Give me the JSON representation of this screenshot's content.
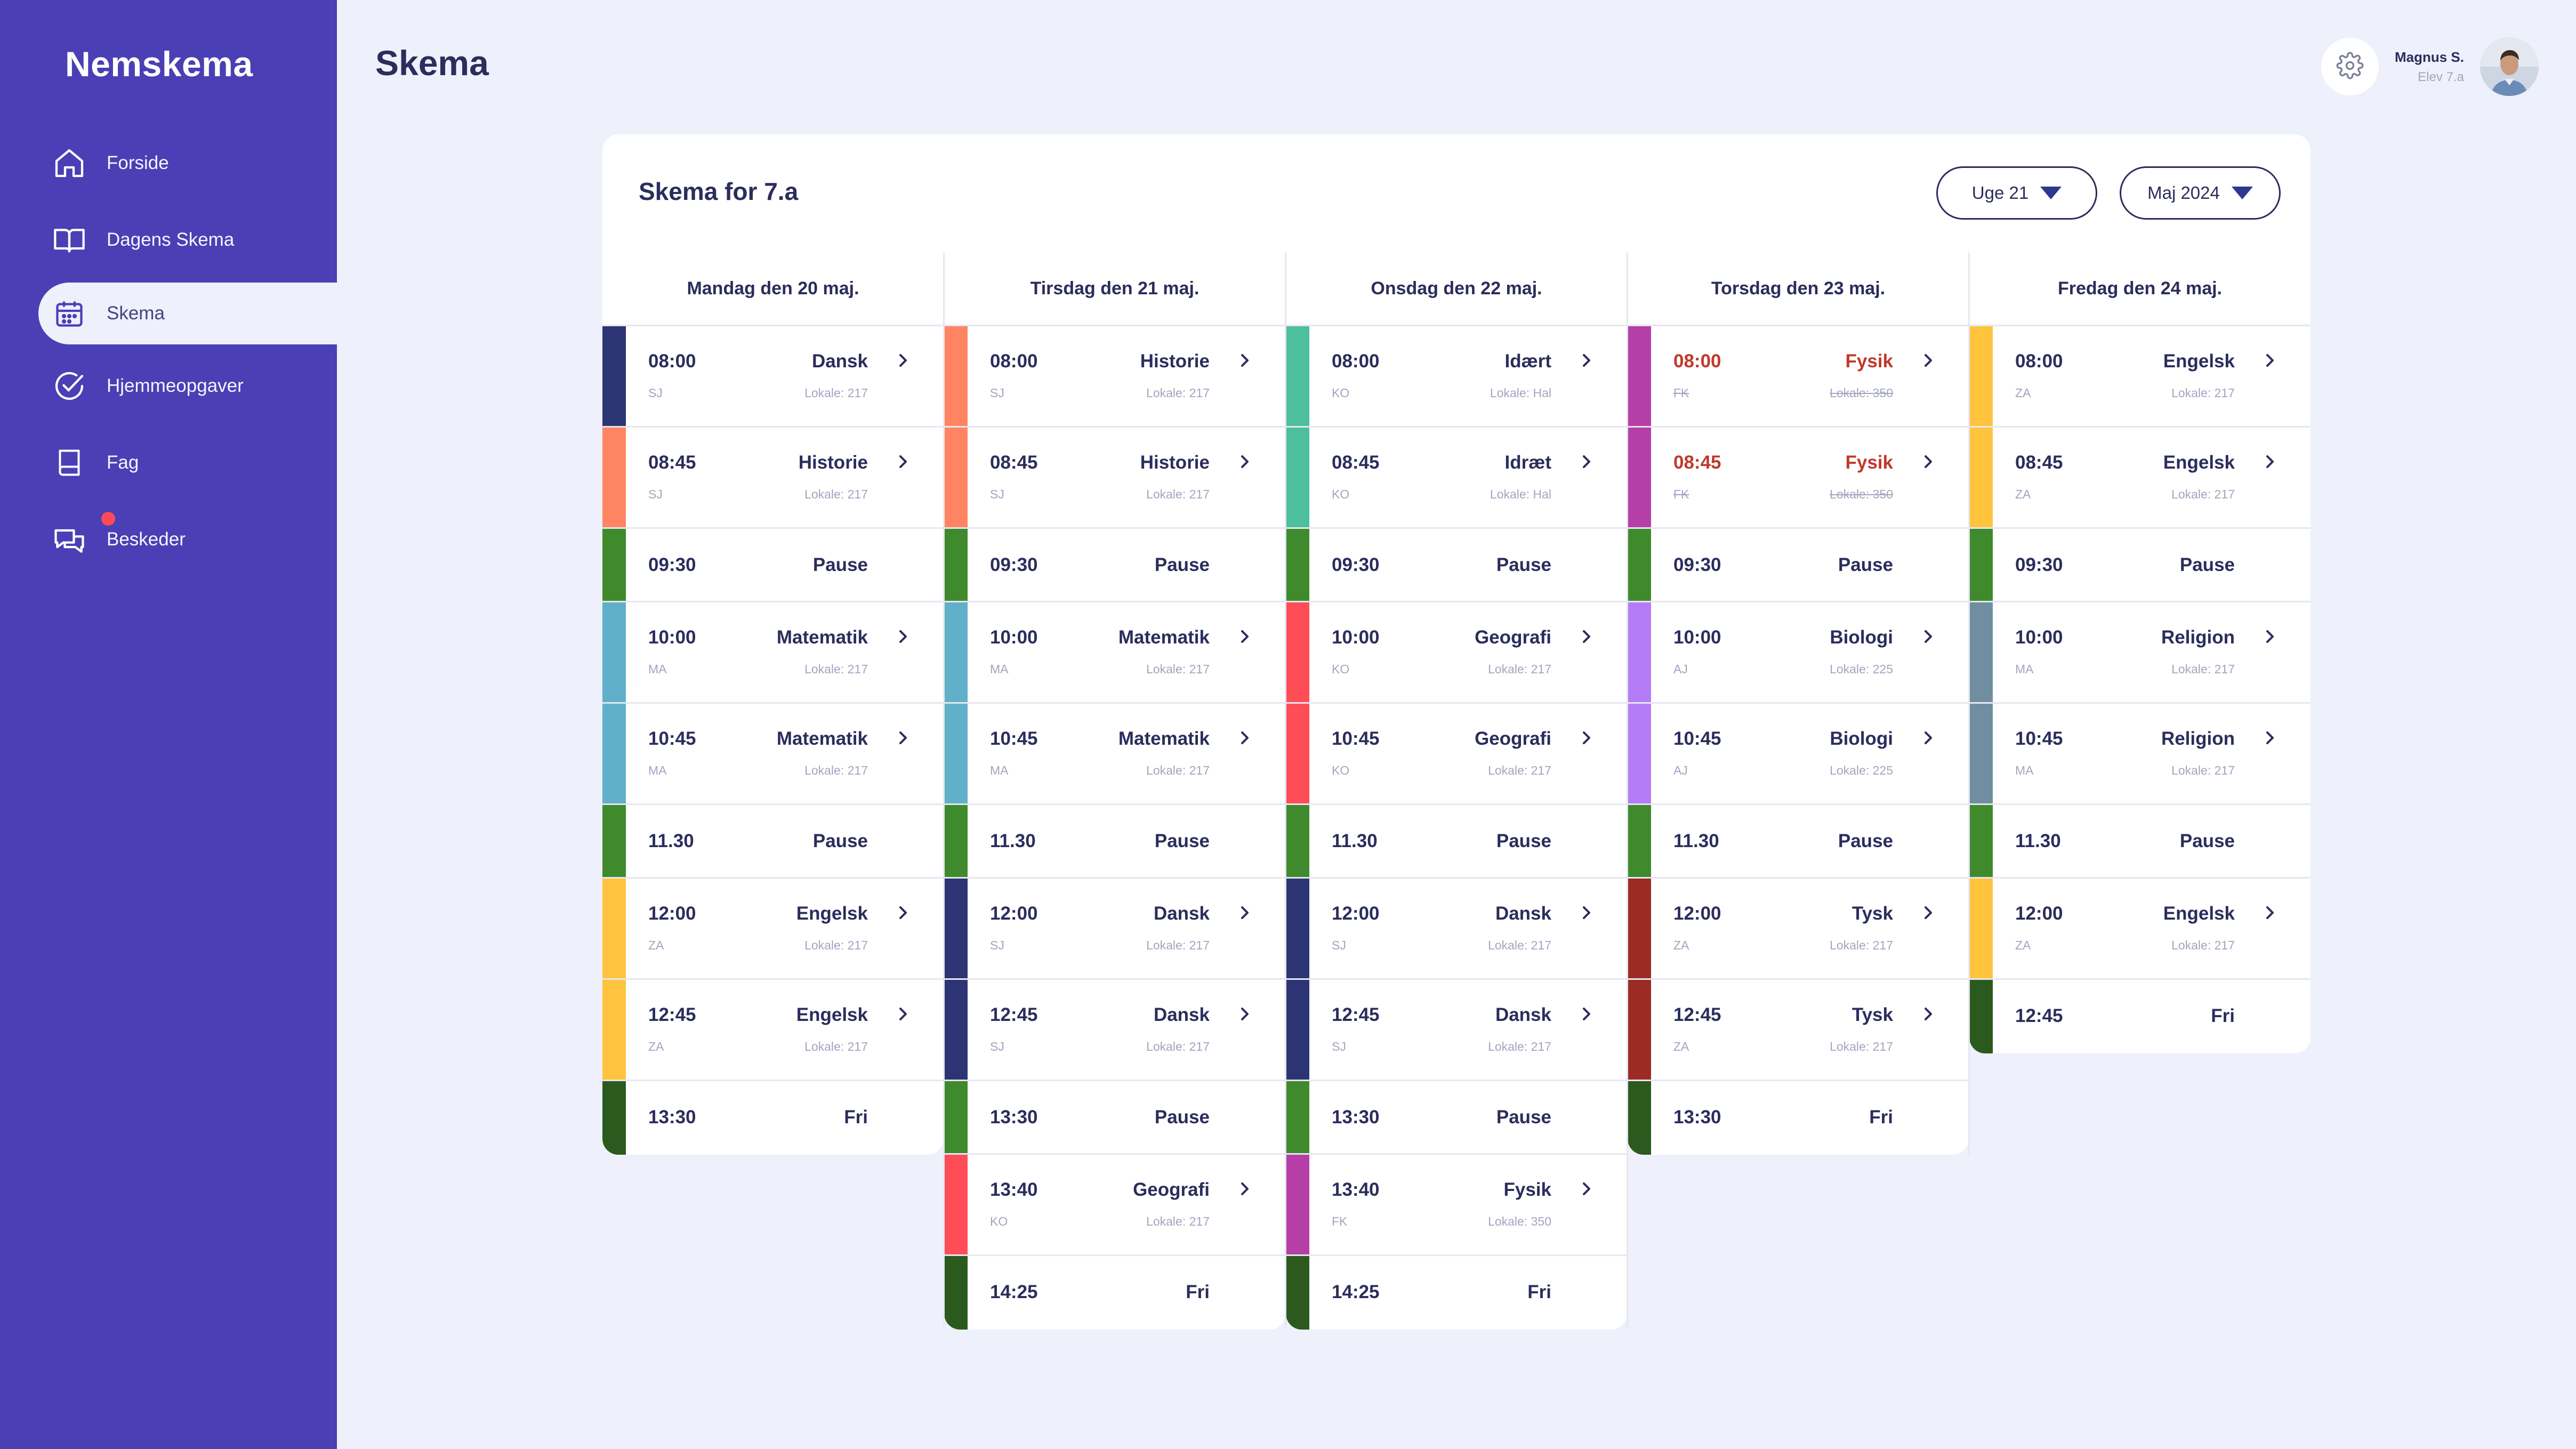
{
  "app": {
    "brand": "Nemskema",
    "page_title": "Skema"
  },
  "sidebar": {
    "items": [
      {
        "label": "Forside",
        "icon": "home-icon"
      },
      {
        "label": "Dagens Skema",
        "icon": "book-open-icon"
      },
      {
        "label": "Skema",
        "icon": "calendar-icon",
        "active": true
      },
      {
        "label": "Hjemmeopgaver",
        "icon": "check-circle-icon"
      },
      {
        "label": "Fag",
        "icon": "book-icon"
      },
      {
        "label": "Beskeder",
        "icon": "chat-icon",
        "badge": true
      }
    ]
  },
  "user": {
    "name": "Magnus S.",
    "role": "Elev 7.a"
  },
  "schedule": {
    "title": "Skema for 7.a",
    "week_select": "Uge 21",
    "month_select": "Maj 2024",
    "colors": {
      "Dansk": "#2d3473",
      "Historie": "#ff8562",
      "Pause": "#3f8a2c",
      "Matematik": "#5fb0c8",
      "Engelsk": "#ffc43d",
      "Fri": "#2c5a1e",
      "Geografi": "#ff4d57",
      "Idræt": "#4dbf9b",
      "Fysik": "#b53fa6",
      "Biologi": "#b47cf6",
      "Tysk": "#9b2b23",
      "Religion": "#6f8fa0"
    },
    "days": [
      {
        "heading": "Mandag den 20 maj.",
        "slots": [
          {
            "time": "08:00",
            "subject": "Dansk",
            "teacher": "SJ",
            "room": "Lokale: 217"
          },
          {
            "time": "08:45",
            "subject": "Historie",
            "teacher": "SJ",
            "room": "Lokale: 217"
          },
          {
            "time": "09:30",
            "subject": "Pause"
          },
          {
            "time": "10:00",
            "subject": "Matematik",
            "teacher": "MA",
            "room": "Lokale: 217"
          },
          {
            "time": "10:45",
            "subject": "Matematik",
            "teacher": "MA",
            "room": "Lokale: 217"
          },
          {
            "time": "11.30",
            "subject": "Pause"
          },
          {
            "time": "12:00",
            "subject": "Engelsk",
            "teacher": "ZA",
            "room": "Lokale: 217"
          },
          {
            "time": "12:45",
            "subject": "Engelsk",
            "teacher": "ZA",
            "room": "Lokale: 217"
          },
          {
            "time": "13:30",
            "subject": "Fri"
          }
        ]
      },
      {
        "heading": "Tirsdag den 21 maj.",
        "slots": [
          {
            "time": "08:00",
            "subject": "Historie",
            "teacher": "SJ",
            "room": "Lokale: 217"
          },
          {
            "time": "08:45",
            "subject": "Historie",
            "teacher": "SJ",
            "room": "Lokale: 217"
          },
          {
            "time": "09:30",
            "subject": "Pause"
          },
          {
            "time": "10:00",
            "subject": "Matematik",
            "teacher": "MA",
            "room": "Lokale: 217"
          },
          {
            "time": "10:45",
            "subject": "Matematik",
            "teacher": "MA",
            "room": "Lokale: 217"
          },
          {
            "time": "11.30",
            "subject": "Pause"
          },
          {
            "time": "12:00",
            "subject": "Dansk",
            "teacher": "SJ",
            "room": "Lokale: 217"
          },
          {
            "time": "12:45",
            "subject": "Dansk",
            "teacher": "SJ",
            "room": "Lokale: 217"
          },
          {
            "time": "13:30",
            "subject": "Pause"
          },
          {
            "time": "13:40",
            "subject": "Geografi",
            "teacher": "KO",
            "room": "Lokale: 217"
          },
          {
            "time": "14:25",
            "subject": "Fri"
          }
        ]
      },
      {
        "heading": "Onsdag den 22 maj.",
        "slots": [
          {
            "time": "08:00",
            "subject": "Idært",
            "teacher": "KO",
            "room": "Lokale: Hal",
            "color": "#4dbf9b"
          },
          {
            "time": "08:45",
            "subject": "Idræt",
            "teacher": "KO",
            "room": "Lokale: Hal"
          },
          {
            "time": "09:30",
            "subject": "Pause"
          },
          {
            "time": "10:00",
            "subject": "Geografi",
            "teacher": "KO",
            "room": "Lokale: 217"
          },
          {
            "time": "10:45",
            "subject": "Geografi",
            "teacher": "KO",
            "room": "Lokale: 217"
          },
          {
            "time": "11.30",
            "subject": "Pause"
          },
          {
            "time": "12:00",
            "subject": "Dansk",
            "teacher": "SJ",
            "room": "Lokale: 217"
          },
          {
            "time": "12:45",
            "subject": "Dansk",
            "teacher": "SJ",
            "room": "Lokale: 217"
          },
          {
            "time": "13:30",
            "subject": "Pause"
          },
          {
            "time": "13:40",
            "subject": "Fysik",
            "teacher": "FK",
            "room": "Lokale: 350"
          },
          {
            "time": "14:25",
            "subject": "Fri"
          }
        ]
      },
      {
        "heading": "Torsdag den 23 maj.",
        "slots": [
          {
            "time": "08:00",
            "subject": "Fysik",
            "teacher": "FK",
            "room": "Lokale: 350",
            "cancelled": true
          },
          {
            "time": "08:45",
            "subject": "Fysik",
            "teacher": "FK",
            "room": "Lokale: 350",
            "cancelled": true
          },
          {
            "time": "09:30",
            "subject": "Pause"
          },
          {
            "time": "10:00",
            "subject": "Biologi",
            "teacher": "AJ",
            "room": "Lokale: 225"
          },
          {
            "time": "10:45",
            "subject": "Biologi",
            "teacher": "AJ",
            "room": "Lokale: 225"
          },
          {
            "time": "11.30",
            "subject": "Pause"
          },
          {
            "time": "12:00",
            "subject": "Tysk",
            "teacher": "ZA",
            "room": "Lokale: 217"
          },
          {
            "time": "12:45",
            "subject": "Tysk",
            "teacher": "ZA",
            "room": "Lokale: 217"
          },
          {
            "time": "13:30",
            "subject": "Fri"
          }
        ]
      },
      {
        "heading": "Fredag den 24 maj.",
        "slots": [
          {
            "time": "08:00",
            "subject": "Engelsk",
            "teacher": "ZA",
            "room": "Lokale: 217"
          },
          {
            "time": "08:45",
            "subject": "Engelsk",
            "teacher": "ZA",
            "room": "Lokale: 217"
          },
          {
            "time": "09:30",
            "subject": "Pause"
          },
          {
            "time": "10:00",
            "subject": "Religion",
            "teacher": "MA",
            "room": "Lokale: 217"
          },
          {
            "time": "10:45",
            "subject": "Religion",
            "teacher": "MA",
            "room": "Lokale: 217"
          },
          {
            "time": "11.30",
            "subject": "Pause"
          },
          {
            "time": "12:00",
            "subject": "Engelsk",
            "teacher": "ZA",
            "room": "Lokale: 217"
          },
          {
            "time": "12:45",
            "subject": "Fri"
          }
        ]
      }
    ]
  }
}
